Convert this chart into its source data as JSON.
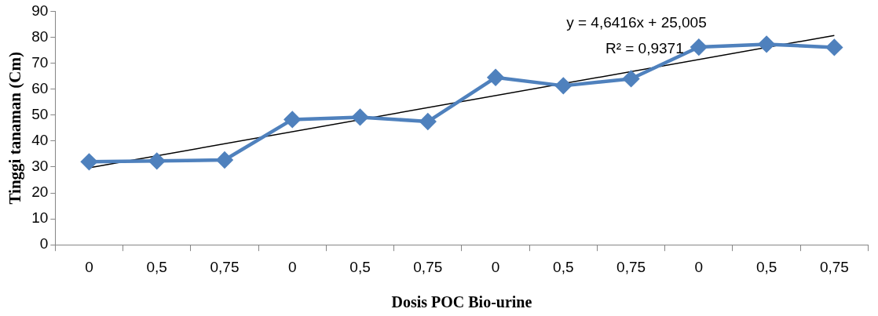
{
  "chart_data": {
    "type": "line",
    "xlabel": "Dosis POC Bio-urine",
    "ylabel": "Tinggi tanaman (Cm)",
    "categories": [
      "0",
      "0,5",
      "0,75",
      "0",
      "0,5",
      "0,75",
      "0",
      "0,5",
      "0,75",
      "0",
      "0,5",
      "0,75"
    ],
    "series": [
      {
        "color": "#4f81bd",
        "marker": "diamond",
        "values": [
          32,
          32.3,
          32.7,
          48.3,
          49.2,
          47.5,
          64.5,
          61.3,
          64,
          76.2,
          77.3,
          76.1
        ]
      },
      {
        "type": "line",
        "color": "#000000",
        "marker": "none",
        "values": [
          29.65,
          null,
          null,
          null,
          null,
          null,
          null,
          null,
          null,
          null,
          null,
          80.7
        ]
      }
    ],
    "ylim": [
      0,
      90
    ],
    "yticks": [
      0,
      10,
      20,
      30,
      40,
      50,
      60,
      70,
      80,
      90
    ],
    "annotations": [
      "y = 4,6416x + 25,005",
      "R² = 0,9371"
    ]
  }
}
